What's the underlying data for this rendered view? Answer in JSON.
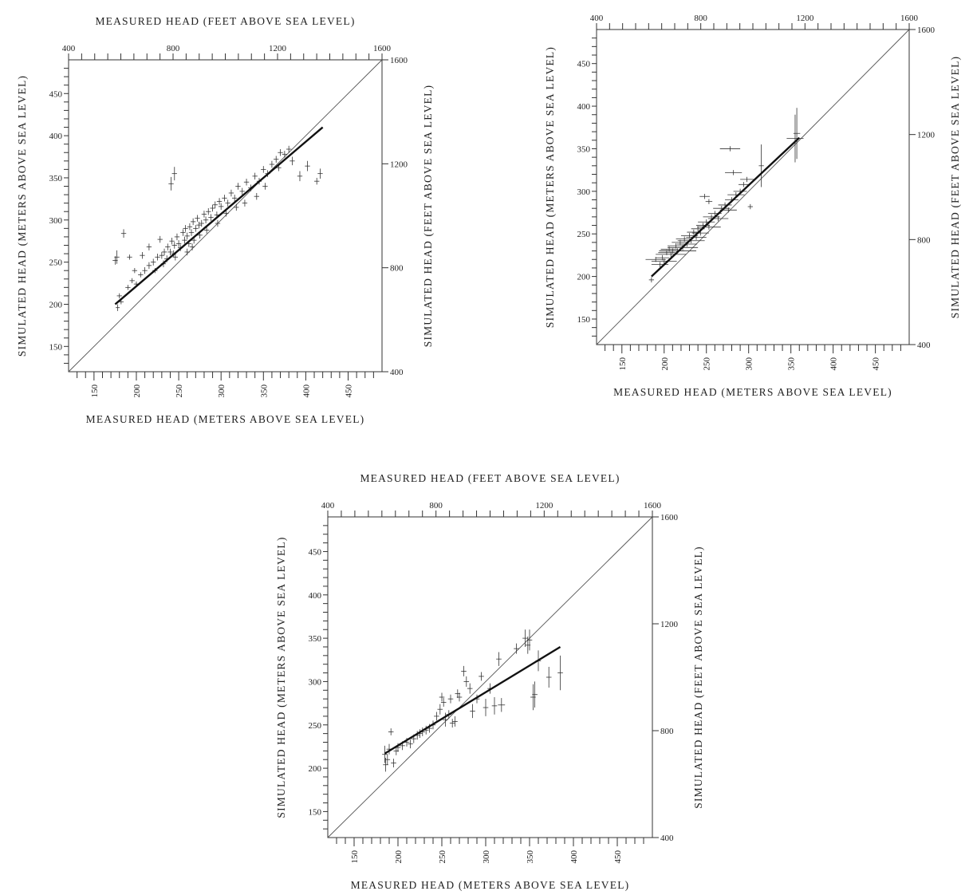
{
  "labels": {
    "top_axis_title": "MEASURED HEAD (FEET ABOVE SEA LEVEL)",
    "bottom_axis_title": "MEASURED HEAD (METERS ABOVE SEA LEVEL)",
    "left_axis_title": "SIMULATED HEAD (METERS ABOVE SEA LEVEL)",
    "right_axis_title": "SIMULATED HEAD (FEET ABOVE SEA LEVEL)"
  },
  "chart_data": [
    {
      "type": "scatter",
      "xlabel": "MEASURED HEAD (METERS ABOVE SEA LEVEL)",
      "ylabel": "SIMULATED HEAD (METERS ABOVE SEA LEVEL)",
      "x2label": "MEASURED HEAD (FEET ABOVE SEA LEVEL)",
      "y2label": "SIMULATED HEAD (FEET ABOVE SEA LEVEL)",
      "xlim": [
        120,
        490
      ],
      "ylim": [
        120,
        490
      ],
      "x2lim": [
        400,
        1600
      ],
      "y2lim": [
        400,
        1600
      ],
      "x_ticks": [
        150,
        200,
        250,
        300,
        350,
        400,
        450
      ],
      "y_ticks": [
        150,
        200,
        250,
        300,
        350,
        400,
        450
      ],
      "x2_ticks": [
        400,
        800,
        1200,
        1600
      ],
      "y2_ticks": [
        400,
        800,
        1200,
        1600
      ],
      "one_to_one_line": true,
      "regression_line": [
        [
          175,
          200
        ],
        [
          420,
          410
        ]
      ],
      "points": [
        [
          175,
          252,
          3,
          5
        ],
        [
          177,
          256,
          3,
          8
        ],
        [
          180,
          210,
          3,
          3
        ],
        [
          178,
          196,
          2,
          4
        ],
        [
          182,
          203,
          3,
          3
        ],
        [
          185,
          284,
          3,
          5
        ],
        [
          190,
          220,
          3,
          3
        ],
        [
          195,
          228,
          3,
          3
        ],
        [
          200,
          224,
          3,
          3
        ],
        [
          205,
          235,
          3,
          3
        ],
        [
          210,
          240,
          3,
          4
        ],
        [
          215,
          246,
          3,
          4
        ],
        [
          220,
          250,
          3,
          4
        ],
        [
          222,
          240,
          3,
          3
        ],
        [
          225,
          256,
          3,
          4
        ],
        [
          230,
          258,
          3,
          4
        ],
        [
          233,
          262,
          3,
          4
        ],
        [
          237,
          268,
          3,
          4
        ],
        [
          240,
          262,
          3,
          4
        ],
        [
          242,
          275,
          3,
          4
        ],
        [
          245,
          270,
          3,
          4
        ],
        [
          246,
          256,
          3,
          4
        ],
        [
          248,
          280,
          3,
          4
        ],
        [
          250,
          272,
          3,
          4
        ],
        [
          252,
          267,
          3,
          4
        ],
        [
          255,
          285,
          3,
          4
        ],
        [
          257,
          276,
          3,
          4
        ],
        [
          258,
          290,
          3,
          4
        ],
        [
          260,
          281,
          3,
          4
        ],
        [
          262,
          272,
          3,
          4
        ],
        [
          263,
          292,
          3,
          4
        ],
        [
          265,
          285,
          3,
          4
        ],
        [
          267,
          298,
          3,
          4
        ],
        [
          268,
          276,
          3,
          4
        ],
        [
          270,
          290,
          3,
          4
        ],
        [
          272,
          302,
          3,
          4
        ],
        [
          274,
          294,
          3,
          4
        ],
        [
          275,
          282,
          3,
          4
        ],
        [
          277,
          296,
          3,
          4
        ],
        [
          280,
          307,
          3,
          4
        ],
        [
          282,
          300,
          3,
          4
        ],
        [
          285,
          310,
          3,
          4
        ],
        [
          288,
          303,
          3,
          4
        ],
        [
          290,
          314,
          3,
          4
        ],
        [
          293,
          318,
          3,
          4
        ],
        [
          295,
          306,
          3,
          4
        ],
        [
          298,
          322,
          3,
          4
        ],
        [
          300,
          316,
          3,
          4
        ],
        [
          304,
          326,
          3,
          4
        ],
        [
          308,
          320,
          3,
          4
        ],
        [
          312,
          332,
          3,
          4
        ],
        [
          316,
          326,
          3,
          4
        ],
        [
          320,
          340,
          3,
          4
        ],
        [
          325,
          334,
          3,
          4
        ],
        [
          330,
          345,
          3,
          4
        ],
        [
          335,
          338,
          3,
          4
        ],
        [
          340,
          352,
          3,
          4
        ],
        [
          345,
          346,
          3,
          4
        ],
        [
          350,
          360,
          3,
          4
        ],
        [
          355,
          355,
          3,
          4
        ],
        [
          360,
          366,
          3,
          4
        ],
        [
          365,
          372,
          3,
          4
        ],
        [
          370,
          380,
          3,
          4
        ],
        [
          375,
          378,
          3,
          4
        ],
        [
          380,
          384,
          3,
          4
        ],
        [
          384,
          370,
          3,
          5
        ],
        [
          393,
          352,
          3,
          6
        ],
        [
          402,
          364,
          3,
          6
        ],
        [
          413,
          346,
          3,
          4
        ],
        [
          417,
          355,
          3,
          6
        ],
        [
          241,
          343,
          3,
          8
        ],
        [
          245,
          355,
          3,
          8
        ],
        [
          192,
          256,
          3,
          3
        ],
        [
          198,
          240,
          3,
          3
        ],
        [
          207,
          258,
          3,
          4
        ],
        [
          215,
          268,
          3,
          4
        ],
        [
          228,
          277,
          3,
          4
        ],
        [
          232,
          248,
          3,
          4
        ],
        [
          236,
          254,
          3,
          4
        ],
        [
          244,
          260,
          3,
          4
        ],
        [
          260,
          262,
          3,
          4
        ],
        [
          266,
          268,
          3,
          4
        ],
        [
          283,
          288,
          3,
          4
        ],
        [
          296,
          296,
          3,
          4
        ],
        [
          306,
          308,
          3,
          4
        ],
        [
          318,
          315,
          3,
          4
        ],
        [
          328,
          320,
          3,
          4
        ],
        [
          342,
          328,
          3,
          4
        ],
        [
          352,
          340,
          3,
          4
        ],
        [
          368,
          362,
          3,
          4
        ]
      ]
    },
    {
      "type": "scatter",
      "xlabel": "MEASURED HEAD (METERS ABOVE SEA LEVEL)",
      "ylabel": "SIMULATED HEAD (METERS ABOVE SEA LEVEL)",
      "x2label": "MEASURED HEAD (FEET ABOVE SEA LEVEL)",
      "y2label": "SIMULATED HEAD (FEET ABOVE SEA LEVEL)",
      "xlim": [
        120,
        490
      ],
      "ylim": [
        120,
        490
      ],
      "x2lim": [
        400,
        1600
      ],
      "y2lim": [
        400,
        1600
      ],
      "x_ticks": [
        150,
        200,
        250,
        300,
        350,
        400,
        450
      ],
      "y_ticks": [
        150,
        200,
        250,
        300,
        350,
        400,
        450
      ],
      "x2_ticks": [
        400,
        800,
        1200,
        1600
      ],
      "y2_ticks": [
        400,
        800,
        1200,
        1600
      ],
      "one_to_one_line": true,
      "regression_line": [
        [
          185,
          200
        ],
        [
          360,
          363
        ]
      ],
      "points": [
        [
          185,
          196,
          3,
          3
        ],
        [
          190,
          220,
          12,
          3
        ],
        [
          195,
          214,
          10,
          3
        ],
        [
          198,
          222,
          8,
          3
        ],
        [
          200,
          218,
          15,
          3
        ],
        [
          203,
          228,
          10,
          3
        ],
        [
          206,
          232,
          10,
          3
        ],
        [
          208,
          226,
          18,
          3
        ],
        [
          210,
          230,
          14,
          3
        ],
        [
          214,
          236,
          10,
          3
        ],
        [
          216,
          230,
          22,
          3
        ],
        [
          219,
          240,
          10,
          3
        ],
        [
          222,
          234,
          18,
          3
        ],
        [
          224,
          244,
          10,
          3
        ],
        [
          227,
          238,
          12,
          3
        ],
        [
          230,
          248,
          10,
          3
        ],
        [
          232,
          242,
          16,
          3
        ],
        [
          235,
          252,
          8,
          3
        ],
        [
          238,
          246,
          12,
          3
        ],
        [
          240,
          256,
          8,
          3
        ],
        [
          243,
          251,
          10,
          3
        ],
        [
          246,
          260,
          8,
          3
        ],
        [
          250,
          264,
          10,
          3
        ],
        [
          253,
          258,
          14,
          3
        ],
        [
          256,
          270,
          10,
          3
        ],
        [
          260,
          274,
          8,
          3
        ],
        [
          264,
          268,
          12,
          3
        ],
        [
          268,
          280,
          10,
          3
        ],
        [
          272,
          284,
          8,
          3
        ],
        [
          276,
          278,
          10,
          3
        ],
        [
          280,
          290,
          8,
          3
        ],
        [
          285,
          296,
          10,
          3
        ],
        [
          290,
          300,
          8,
          3
        ],
        [
          294,
          308,
          6,
          3
        ],
        [
          298,
          314,
          8,
          3
        ],
        [
          302,
          282,
          3,
          3
        ],
        [
          248,
          294,
          6,
          3
        ],
        [
          253,
          288,
          4,
          3
        ],
        [
          278,
          350,
          12,
          3
        ],
        [
          282,
          322,
          10,
          3
        ],
        [
          315,
          330,
          3,
          25
        ],
        [
          355,
          362,
          10,
          28
        ],
        [
          357,
          368,
          4,
          30
        ]
      ]
    },
    {
      "type": "scatter",
      "xlabel": "MEASURED HEAD (METERS ABOVE SEA LEVEL)",
      "ylabel": "SIMULATED HEAD (METERS ABOVE SEA LEVEL)",
      "x2label": "MEASURED HEAD (FEET ABOVE SEA LEVEL)",
      "y2label": "SIMULATED HEAD (FEET ABOVE SEA LEVEL)",
      "xlim": [
        120,
        490
      ],
      "ylim": [
        120,
        490
      ],
      "x2lim": [
        400,
        1600
      ],
      "y2lim": [
        400,
        1600
      ],
      "x_ticks": [
        150,
        200,
        250,
        300,
        350,
        400,
        450
      ],
      "y_ticks": [
        150,
        200,
        250,
        300,
        350,
        400,
        450
      ],
      "x2_ticks": [
        400,
        800,
        1200,
        1600
      ],
      "y2_ticks": [
        400,
        800,
        1200,
        1600
      ],
      "one_to_one_line": true,
      "regression_line": [
        [
          185,
          217
        ],
        [
          385,
          340
        ]
      ],
      "points": [
        [
          185,
          216,
          3,
          10
        ],
        [
          186,
          204,
          3,
          8
        ],
        [
          188,
          210,
          3,
          6
        ],
        [
          190,
          222,
          3,
          6
        ],
        [
          192,
          242,
          3,
          4
        ],
        [
          195,
          206,
          3,
          5
        ],
        [
          198,
          220,
          3,
          5
        ],
        [
          200,
          224,
          3,
          5
        ],
        [
          205,
          226,
          3,
          5
        ],
        [
          210,
          230,
          3,
          5
        ],
        [
          214,
          228,
          3,
          5
        ],
        [
          218,
          234,
          3,
          5
        ],
        [
          222,
          238,
          3,
          5
        ],
        [
          225,
          240,
          3,
          5
        ],
        [
          228,
          242,
          3,
          5
        ],
        [
          232,
          244,
          3,
          5
        ],
        [
          236,
          246,
          3,
          5
        ],
        [
          240,
          250,
          3,
          5
        ],
        [
          244,
          260,
          3,
          5
        ],
        [
          248,
          268,
          3,
          6
        ],
        [
          250,
          282,
          3,
          5
        ],
        [
          252,
          276,
          3,
          5
        ],
        [
          254,
          256,
          3,
          8
        ],
        [
          258,
          262,
          3,
          5
        ],
        [
          260,
          280,
          3,
          5
        ],
        [
          262,
          252,
          3,
          5
        ],
        [
          265,
          254,
          3,
          6
        ],
        [
          268,
          286,
          3,
          5
        ],
        [
          270,
          282,
          3,
          5
        ],
        [
          275,
          312,
          3,
          6
        ],
        [
          278,
          300,
          3,
          6
        ],
        [
          282,
          292,
          3,
          6
        ],
        [
          285,
          266,
          3,
          8
        ],
        [
          290,
          280,
          3,
          5
        ],
        [
          295,
          306,
          3,
          5
        ],
        [
          300,
          270,
          3,
          10
        ],
        [
          305,
          292,
          3,
          6
        ],
        [
          310,
          272,
          3,
          10
        ],
        [
          315,
          326,
          3,
          8
        ],
        [
          318,
          273,
          4,
          8
        ],
        [
          335,
          338,
          3,
          6
        ],
        [
          345,
          350,
          3,
          10
        ],
        [
          348,
          342,
          3,
          10
        ],
        [
          350,
          348,
          3,
          12
        ],
        [
          354,
          282,
          3,
          15
        ],
        [
          356,
          285,
          3,
          15
        ],
        [
          360,
          324,
          3,
          12
        ],
        [
          372,
          305,
          3,
          12
        ],
        [
          385,
          310,
          3,
          20
        ]
      ]
    }
  ]
}
